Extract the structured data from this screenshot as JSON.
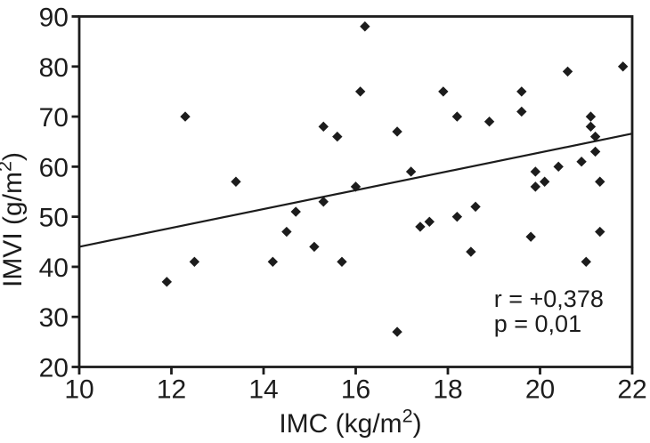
{
  "figure": {
    "background": "#ffffff",
    "ink": "#1c1c1c"
  },
  "chart_data": {
    "type": "scatter",
    "title": "",
    "xlabel": "IMC (kg/m²)",
    "ylabel": "IMVI (g/m²)",
    "xlim": [
      10,
      22
    ],
    "ylim": [
      20,
      90
    ],
    "x_ticks": [
      10,
      12,
      14,
      16,
      18,
      20,
      22
    ],
    "y_ticks": [
      20,
      30,
      40,
      50,
      60,
      70,
      80,
      90
    ],
    "grid": false,
    "legend": "none",
    "marker": "filled-diamond",
    "points": [
      {
        "x": 11.9,
        "y": 37
      },
      {
        "x": 12.3,
        "y": 70
      },
      {
        "x": 12.5,
        "y": 41
      },
      {
        "x": 13.4,
        "y": 57
      },
      {
        "x": 14.2,
        "y": 41
      },
      {
        "x": 14.5,
        "y": 47
      },
      {
        "x": 14.7,
        "y": 51
      },
      {
        "x": 15.1,
        "y": 44
      },
      {
        "x": 15.3,
        "y": 53
      },
      {
        "x": 15.3,
        "y": 68
      },
      {
        "x": 15.6,
        "y": 66
      },
      {
        "x": 15.7,
        "y": 41
      },
      {
        "x": 16.0,
        "y": 56
      },
      {
        "x": 16.1,
        "y": 75
      },
      {
        "x": 16.2,
        "y": 88
      },
      {
        "x": 16.9,
        "y": 27
      },
      {
        "x": 16.9,
        "y": 67
      },
      {
        "x": 17.2,
        "y": 59
      },
      {
        "x": 17.4,
        "y": 48
      },
      {
        "x": 17.6,
        "y": 49
      },
      {
        "x": 17.9,
        "y": 75
      },
      {
        "x": 18.2,
        "y": 50
      },
      {
        "x": 18.2,
        "y": 70
      },
      {
        "x": 18.5,
        "y": 43
      },
      {
        "x": 18.6,
        "y": 52
      },
      {
        "x": 18.9,
        "y": 69
      },
      {
        "x": 19.6,
        "y": 71
      },
      {
        "x": 19.6,
        "y": 75
      },
      {
        "x": 19.8,
        "y": 46
      },
      {
        "x": 19.9,
        "y": 56
      },
      {
        "x": 19.9,
        "y": 59
      },
      {
        "x": 20.1,
        "y": 57
      },
      {
        "x": 20.4,
        "y": 60
      },
      {
        "x": 20.6,
        "y": 79
      },
      {
        "x": 20.9,
        "y": 61
      },
      {
        "x": 21.0,
        "y": 41
      },
      {
        "x": 21.1,
        "y": 68
      },
      {
        "x": 21.1,
        "y": 70
      },
      {
        "x": 21.2,
        "y": 63
      },
      {
        "x": 21.2,
        "y": 66
      },
      {
        "x": 21.3,
        "y": 47
      },
      {
        "x": 21.3,
        "y": 57
      },
      {
        "x": 21.8,
        "y": 80
      }
    ],
    "trend_line": {
      "type": "linear",
      "x1": 10,
      "y1": 44.0,
      "x2": 22,
      "y2": 66.6
    },
    "annotation": {
      "lines": [
        "r = +0,378",
        "p = 0,01"
      ],
      "x": 19.0,
      "y_baselines": [
        32,
        27
      ],
      "align": "left"
    }
  }
}
